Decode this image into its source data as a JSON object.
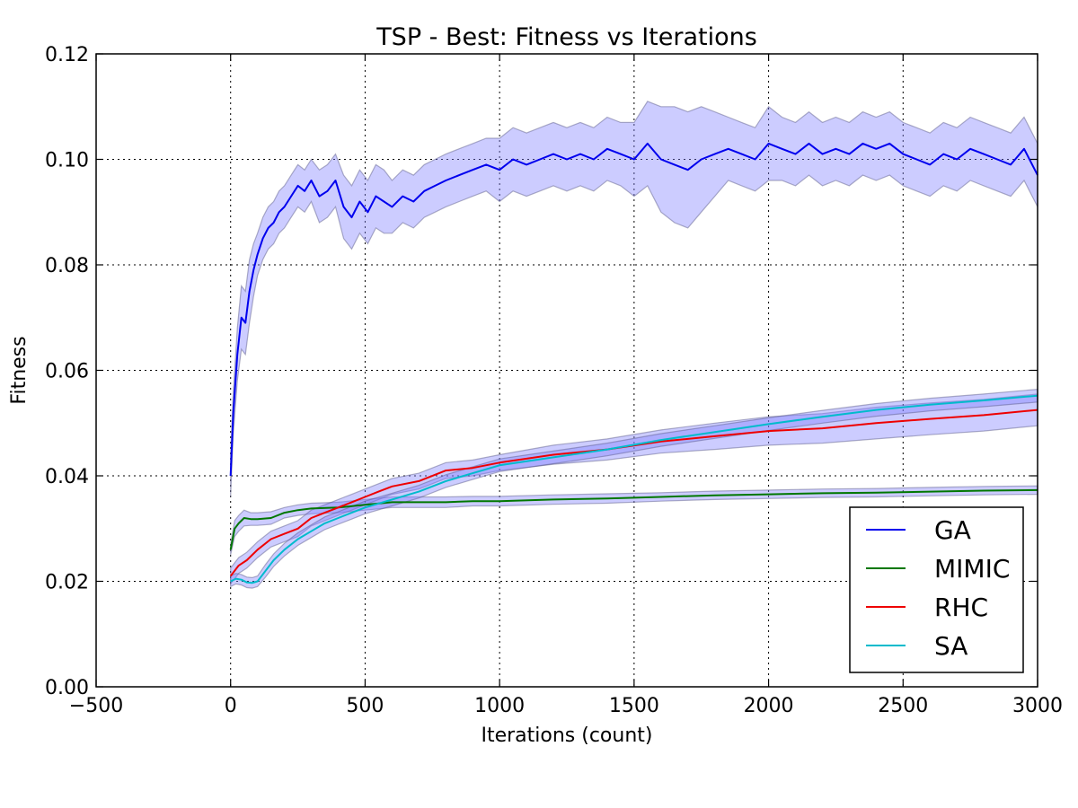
{
  "chart_data": {
    "type": "line",
    "title": "TSP - Best: Fitness vs Iterations",
    "xlabel": "Iterations (count)",
    "ylabel": "Fitness",
    "xlim": [
      -500,
      3000
    ],
    "ylim": [
      0.0,
      0.12
    ],
    "xticks": [
      "−500",
      "0",
      "500",
      "1000",
      "1500",
      "2000",
      "2500",
      "3000"
    ],
    "yticks": [
      "0.00",
      "0.02",
      "0.04",
      "0.06",
      "0.08",
      "0.10",
      "0.12"
    ],
    "grid": true,
    "legend_position": "lower-right",
    "band_color": "#8080ff",
    "series": [
      {
        "name": "GA",
        "color": "#0000ee",
        "x": [
          0,
          10,
          25,
          40,
          55,
          70,
          85,
          100,
          120,
          140,
          160,
          180,
          200,
          225,
          250,
          275,
          300,
          330,
          360,
          390,
          420,
          450,
          480,
          510,
          540,
          570,
          600,
          640,
          680,
          720,
          760,
          800,
          850,
          900,
          950,
          1000,
          1050,
          1100,
          1150,
          1200,
          1250,
          1300,
          1350,
          1400,
          1450,
          1500,
          1550,
          1600,
          1650,
          1700,
          1750,
          1800,
          1850,
          1900,
          1950,
          2000,
          2050,
          2100,
          2150,
          2200,
          2250,
          2300,
          2350,
          2400,
          2450,
          2500,
          2550,
          2600,
          2650,
          2700,
          2750,
          2800,
          2850,
          2900,
          2950,
          3000
        ],
        "y": [
          0.04,
          0.052,
          0.063,
          0.07,
          0.069,
          0.075,
          0.079,
          0.082,
          0.085,
          0.087,
          0.088,
          0.09,
          0.091,
          0.093,
          0.095,
          0.094,
          0.096,
          0.093,
          0.094,
          0.096,
          0.091,
          0.089,
          0.092,
          0.09,
          0.093,
          0.092,
          0.091,
          0.093,
          0.092,
          0.094,
          0.095,
          0.096,
          0.097,
          0.098,
          0.099,
          0.098,
          0.1,
          0.099,
          0.1,
          0.101,
          0.1,
          0.101,
          0.1,
          0.102,
          0.101,
          0.1,
          0.103,
          0.1,
          0.099,
          0.098,
          0.1,
          0.101,
          0.102,
          0.101,
          0.1,
          0.103,
          0.102,
          0.101,
          0.103,
          0.101,
          0.102,
          0.101,
          0.103,
          0.102,
          0.103,
          0.101,
          0.1,
          0.099,
          0.101,
          0.1,
          0.102,
          0.101,
          0.1,
          0.099,
          0.102,
          0.097
        ],
        "band": [
          0.004,
          0.004,
          0.005,
          0.006,
          0.006,
          0.006,
          0.005,
          0.004,
          0.004,
          0.004,
          0.004,
          0.004,
          0.004,
          0.004,
          0.004,
          0.004,
          0.004,
          0.005,
          0.005,
          0.005,
          0.006,
          0.006,
          0.006,
          0.006,
          0.006,
          0.006,
          0.005,
          0.005,
          0.005,
          0.005,
          0.005,
          0.005,
          0.005,
          0.005,
          0.005,
          0.006,
          0.006,
          0.006,
          0.006,
          0.006,
          0.006,
          0.006,
          0.006,
          0.006,
          0.006,
          0.007,
          0.008,
          0.01,
          0.011,
          0.011,
          0.01,
          0.008,
          0.006,
          0.006,
          0.006,
          0.007,
          0.006,
          0.006,
          0.006,
          0.006,
          0.006,
          0.006,
          0.006,
          0.006,
          0.006,
          0.006,
          0.006,
          0.006,
          0.006,
          0.006,
          0.006,
          0.006,
          0.006,
          0.006,
          0.006,
          0.006
        ]
      },
      {
        "name": "MIMIC",
        "color": "#007700",
        "x": [
          0,
          15,
          30,
          50,
          75,
          100,
          150,
          200,
          250,
          300,
          400,
          500,
          600,
          700,
          800,
          900,
          1000,
          1200,
          1400,
          1600,
          1800,
          2000,
          2200,
          2400,
          2600,
          2800,
          3000
        ],
        "y": [
          0.026,
          0.03,
          0.031,
          0.032,
          0.0318,
          0.0318,
          0.032,
          0.033,
          0.0335,
          0.0338,
          0.034,
          0.0345,
          0.035,
          0.035,
          0.035,
          0.0352,
          0.0352,
          0.0355,
          0.0357,
          0.036,
          0.0363,
          0.0365,
          0.0367,
          0.0368,
          0.037,
          0.0372,
          0.0373
        ],
        "band": [
          0.001,
          0.0015,
          0.0015,
          0.0015,
          0.0012,
          0.0012,
          0.0012,
          0.001,
          0.001,
          0.001,
          0.001,
          0.001,
          0.001,
          0.001,
          0.001,
          0.0009,
          0.0009,
          0.0009,
          0.0009,
          0.0008,
          0.0008,
          0.0008,
          0.0008,
          0.0008,
          0.0008,
          0.0008,
          0.0008
        ]
      },
      {
        "name": "RHC",
        "color": "#ee0000",
        "x": [
          0,
          30,
          60,
          100,
          150,
          200,
          250,
          300,
          350,
          400,
          450,
          500,
          550,
          600,
          700,
          800,
          900,
          1000,
          1200,
          1400,
          1600,
          1800,
          2000,
          2200,
          2400,
          2600,
          2800,
          3000
        ],
        "y": [
          0.021,
          0.023,
          0.024,
          0.026,
          0.028,
          0.029,
          0.03,
          0.032,
          0.033,
          0.034,
          0.035,
          0.036,
          0.037,
          0.038,
          0.039,
          0.041,
          0.0415,
          0.0425,
          0.044,
          0.045,
          0.0465,
          0.0475,
          0.0485,
          0.049,
          0.05,
          0.0508,
          0.0515,
          0.0525
        ],
        "band": [
          0.0015,
          0.0015,
          0.0015,
          0.0015,
          0.0015,
          0.0015,
          0.0015,
          0.0015,
          0.0015,
          0.0015,
          0.0015,
          0.0015,
          0.0015,
          0.0015,
          0.0015,
          0.0015,
          0.0015,
          0.0015,
          0.0018,
          0.002,
          0.0022,
          0.0025,
          0.0027,
          0.0028,
          0.003,
          0.003,
          0.003,
          0.003
        ]
      },
      {
        "name": "SA",
        "color": "#00bbcc",
        "x": [
          0,
          20,
          40,
          60,
          80,
          100,
          130,
          160,
          200,
          250,
          300,
          350,
          400,
          450,
          500,
          600,
          700,
          800,
          900,
          1000,
          1200,
          1400,
          1600,
          1800,
          2000,
          2200,
          2400,
          2600,
          2800,
          3000
        ],
        "y": [
          0.02,
          0.0205,
          0.0203,
          0.0198,
          0.0197,
          0.02,
          0.022,
          0.024,
          0.026,
          0.028,
          0.0295,
          0.031,
          0.032,
          0.033,
          0.034,
          0.0355,
          0.037,
          0.039,
          0.0405,
          0.042,
          0.0435,
          0.045,
          0.0468,
          0.0483,
          0.0498,
          0.0512,
          0.0525,
          0.0535,
          0.0543,
          0.0552
        ],
        "band": [
          0.001,
          0.001,
          0.001,
          0.001,
          0.001,
          0.001,
          0.0012,
          0.0012,
          0.0012,
          0.0012,
          0.0012,
          0.0012,
          0.0012,
          0.0012,
          0.0012,
          0.0012,
          0.0012,
          0.0012,
          0.0012,
          0.0012,
          0.0012,
          0.0012,
          0.0012,
          0.0012,
          0.0012,
          0.0012,
          0.0012,
          0.0012,
          0.0012,
          0.0012
        ]
      }
    ]
  }
}
